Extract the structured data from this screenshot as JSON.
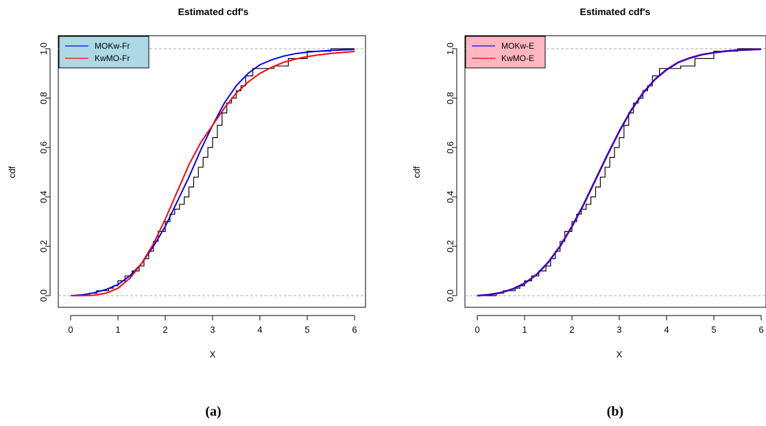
{
  "chart_data": [
    {
      "panel_label": "(a)",
      "type": "line",
      "title": "Estimated cdf's",
      "xlabel": "X",
      "ylabel": "cdf",
      "xlim": [
        0,
        6
      ],
      "ylim": [
        0,
        1
      ],
      "xticks": [
        "0",
        "1",
        "2",
        "3",
        "4",
        "5",
        "6"
      ],
      "yticks": [
        "0.0",
        "0.2",
        "0.4",
        "0.6",
        "0.8",
        "1.0"
      ],
      "reference_lines": [
        0,
        1
      ],
      "legend": {
        "placement": "top-left",
        "background": "#add8e6"
      },
      "empirical_steps": {
        "color": "#000000",
        "x": [
          0.4,
          0.55,
          0.8,
          0.9,
          1.0,
          1.15,
          1.3,
          1.45,
          1.55,
          1.65,
          1.75,
          1.85,
          2.0,
          2.1,
          2.2,
          2.3,
          2.4,
          2.5,
          2.6,
          2.7,
          2.8,
          2.9,
          3.0,
          3.1,
          3.2,
          3.3,
          3.4,
          3.5,
          3.6,
          3.7,
          3.85,
          4.0,
          4.3,
          4.6,
          5.0,
          5.5
        ],
        "y": [
          0.01,
          0.02,
          0.03,
          0.04,
          0.06,
          0.08,
          0.1,
          0.12,
          0.15,
          0.18,
          0.22,
          0.26,
          0.3,
          0.33,
          0.35,
          0.37,
          0.4,
          0.44,
          0.48,
          0.52,
          0.56,
          0.6,
          0.64,
          0.69,
          0.74,
          0.78,
          0.8,
          0.83,
          0.85,
          0.89,
          0.92,
          0.92,
          0.93,
          0.96,
          0.99,
          1.0
        ]
      },
      "series": [
        {
          "name": "MOKw-Fr",
          "color": "#0000ff",
          "x": [
            0,
            0.25,
            0.5,
            0.75,
            1.0,
            1.25,
            1.5,
            1.75,
            2.0,
            2.25,
            2.5,
            2.75,
            3.0,
            3.25,
            3.5,
            3.75,
            4.0,
            4.25,
            4.5,
            4.75,
            5.0,
            5.25,
            5.5,
            5.75,
            6.0
          ],
          "y": [
            0.0,
            0.003,
            0.012,
            0.025,
            0.045,
            0.08,
            0.13,
            0.2,
            0.28,
            0.38,
            0.48,
            0.59,
            0.69,
            0.78,
            0.85,
            0.9,
            0.935,
            0.955,
            0.97,
            0.98,
            0.986,
            0.99,
            0.993,
            0.995,
            0.997
          ]
        },
        {
          "name": "KwMO-Fr",
          "color": "#ff0000",
          "x": [
            0,
            0.25,
            0.5,
            0.75,
            1.0,
            1.25,
            1.5,
            1.75,
            2.0,
            2.25,
            2.5,
            2.75,
            3.0,
            3.25,
            3.5,
            3.75,
            4.0,
            4.25,
            4.5,
            4.75,
            5.0,
            5.25,
            5.5,
            5.75,
            6.0
          ],
          "y": [
            0.0,
            0.0,
            0.002,
            0.01,
            0.03,
            0.07,
            0.13,
            0.21,
            0.31,
            0.42,
            0.53,
            0.62,
            0.69,
            0.76,
            0.82,
            0.865,
            0.9,
            0.925,
            0.945,
            0.958,
            0.968,
            0.975,
            0.981,
            0.985,
            0.989
          ]
        }
      ]
    },
    {
      "panel_label": "(b)",
      "type": "line",
      "title": "Estimated cdf's",
      "xlabel": "X",
      "ylabel": "cdf",
      "xlim": [
        0,
        6
      ],
      "ylim": [
        0,
        1
      ],
      "xticks": [
        "0",
        "1",
        "2",
        "3",
        "4",
        "5",
        "6"
      ],
      "yticks": [
        "0.0",
        "0.2",
        "0.4",
        "0.6",
        "0.8",
        "1.0"
      ],
      "reference_lines": [
        0,
        1
      ],
      "legend": {
        "placement": "top-left",
        "background": "#ffb6c1"
      },
      "empirical_steps": {
        "color": "#000000",
        "x": [
          0.4,
          0.55,
          0.8,
          0.9,
          1.0,
          1.15,
          1.3,
          1.45,
          1.55,
          1.65,
          1.75,
          1.85,
          2.0,
          2.1,
          2.2,
          2.3,
          2.4,
          2.5,
          2.6,
          2.7,
          2.8,
          2.9,
          3.0,
          3.1,
          3.2,
          3.3,
          3.4,
          3.5,
          3.6,
          3.7,
          3.85,
          4.0,
          4.3,
          4.6,
          5.0,
          5.5
        ],
        "y": [
          0.01,
          0.02,
          0.03,
          0.04,
          0.06,
          0.08,
          0.1,
          0.12,
          0.15,
          0.18,
          0.22,
          0.26,
          0.3,
          0.33,
          0.35,
          0.37,
          0.4,
          0.44,
          0.48,
          0.52,
          0.56,
          0.6,
          0.64,
          0.69,
          0.74,
          0.78,
          0.8,
          0.83,
          0.85,
          0.89,
          0.92,
          0.92,
          0.93,
          0.96,
          0.99,
          1.0
        ]
      },
      "series": [
        {
          "name": "KwMO-E",
          "color": "#ff0000",
          "x": [
            0,
            0.25,
            0.5,
            0.75,
            1.0,
            1.25,
            1.5,
            1.75,
            2.0,
            2.25,
            2.5,
            2.75,
            3.0,
            3.25,
            3.5,
            3.75,
            4.0,
            4.25,
            4.5,
            4.75,
            5.0,
            5.25,
            5.5,
            5.75,
            6.0
          ],
          "y": [
            0.0,
            0.004,
            0.012,
            0.027,
            0.05,
            0.085,
            0.135,
            0.2,
            0.28,
            0.37,
            0.47,
            0.57,
            0.665,
            0.75,
            0.82,
            0.875,
            0.915,
            0.945,
            0.963,
            0.976,
            0.984,
            0.99,
            0.994,
            0.996,
            0.998
          ]
        },
        {
          "name": "MOKw-E",
          "color": "#0000ff",
          "x": [
            0,
            0.25,
            0.5,
            0.75,
            1.0,
            1.25,
            1.5,
            1.75,
            2.0,
            2.25,
            2.5,
            2.75,
            3.0,
            3.25,
            3.5,
            3.75,
            4.0,
            4.25,
            4.5,
            4.75,
            5.0,
            5.25,
            5.5,
            5.75,
            6.0
          ],
          "y": [
            0.0,
            0.004,
            0.012,
            0.027,
            0.05,
            0.085,
            0.135,
            0.2,
            0.28,
            0.37,
            0.47,
            0.57,
            0.665,
            0.75,
            0.82,
            0.875,
            0.915,
            0.945,
            0.963,
            0.976,
            0.984,
            0.99,
            0.994,
            0.996,
            0.998
          ]
        }
      ],
      "legend_order": [
        "MOKw-E",
        "KwMO-E"
      ]
    }
  ]
}
